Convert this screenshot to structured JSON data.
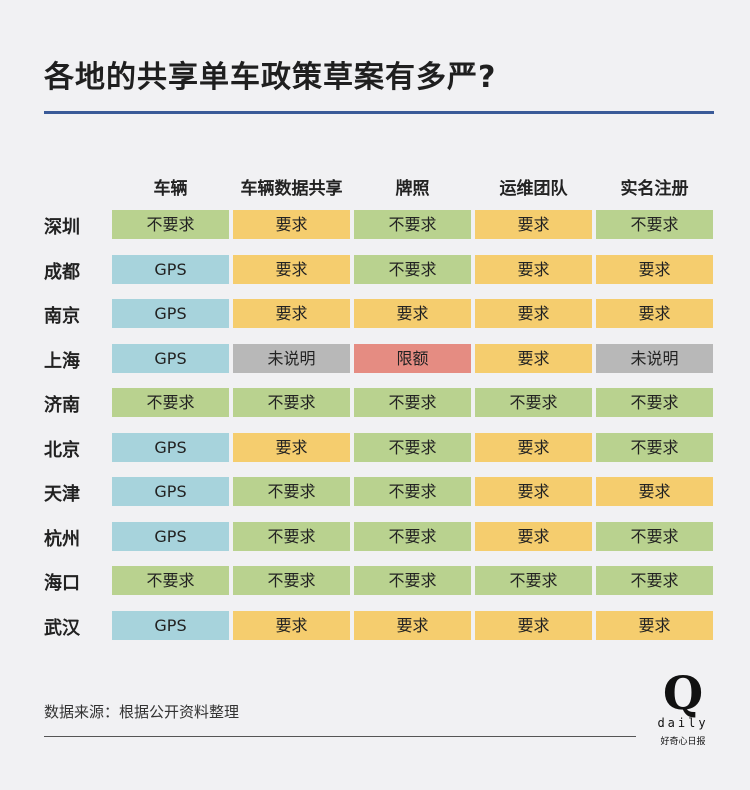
{
  "chart_data": {
    "type": "table",
    "title": "各地的共享单车政策草案有多严?",
    "columns": [
      "车辆",
      "车辆数据共享",
      "牌照",
      "运维团队",
      "实名注册"
    ],
    "rows": [
      {
        "city": "深圳",
        "cells": [
          "不要求",
          "要求",
          "不要求",
          "要求",
          "不要求"
        ]
      },
      {
        "city": "成都",
        "cells": [
          "GPS",
          "要求",
          "不要求",
          "要求",
          "要求"
        ]
      },
      {
        "city": "南京",
        "cells": [
          "GPS",
          "要求",
          "要求",
          "要求",
          "要求"
        ]
      },
      {
        "city": "上海",
        "cells": [
          "GPS",
          "未说明",
          "限额",
          "要求",
          "未说明"
        ]
      },
      {
        "city": "济南",
        "cells": [
          "不要求",
          "不要求",
          "不要求",
          "不要求",
          "不要求"
        ]
      },
      {
        "city": "北京",
        "cells": [
          "GPS",
          "要求",
          "不要求",
          "要求",
          "不要求"
        ]
      },
      {
        "city": "天津",
        "cells": [
          "GPS",
          "不要求",
          "不要求",
          "要求",
          "要求"
        ]
      },
      {
        "city": "杭州",
        "cells": [
          "GPS",
          "不要求",
          "不要求",
          "要求",
          "不要求"
        ]
      },
      {
        "city": "海口",
        "cells": [
          "不要求",
          "不要求",
          "不要求",
          "不要求",
          "不要求"
        ]
      },
      {
        "city": "武汉",
        "cells": [
          "GPS",
          "要求",
          "要求",
          "要求",
          "要求"
        ]
      }
    ],
    "source": "数据来源：根据公开资料整理"
  },
  "colors": {
    "不要求": "#b9d28f",
    "要求": "#f5cd6e",
    "GPS": "#a7d3dc",
    "未说明": "#b8b8b8",
    "限额": "#e58c82",
    "accent": "#3a5a98"
  },
  "logo": {
    "mark": "Q",
    "word": "daily",
    "cn": "好奇心日报"
  }
}
